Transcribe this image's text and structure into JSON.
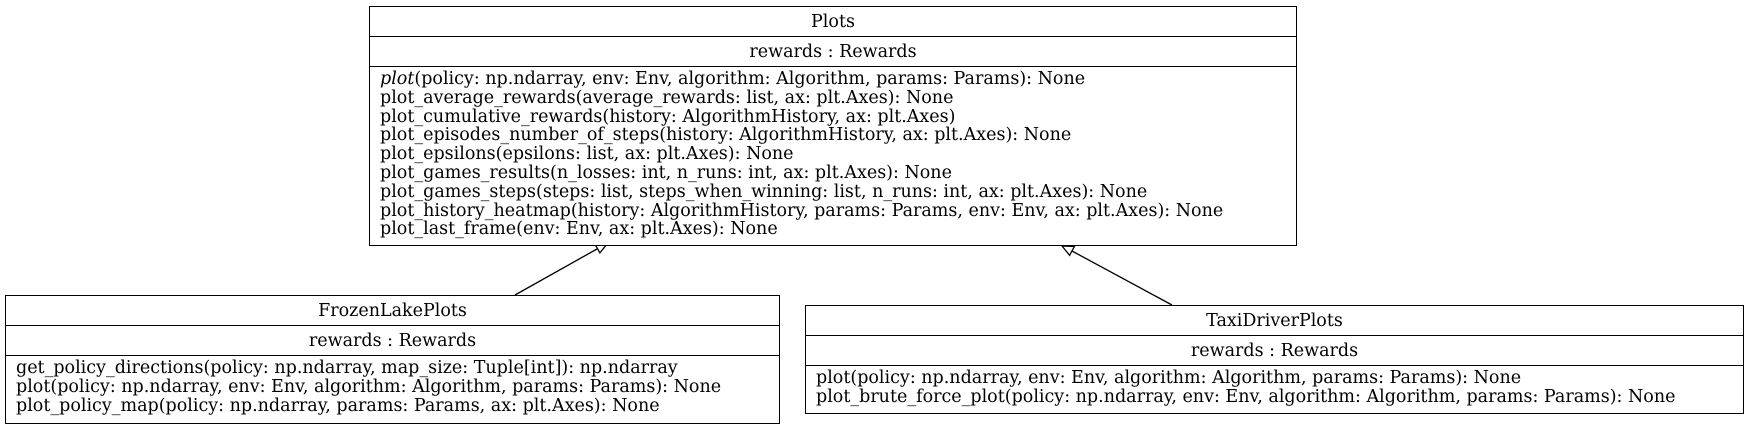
{
  "classes": {
    "plots": {
      "name": "Plots",
      "attributes": [
        "rewards : Rewards"
      ],
      "methods": [
        {
          "name": "plot",
          "signature": "(policy: np.ndarray, env: Env, algorithm: Algorithm, params: Params): None",
          "abstract": true
        },
        {
          "text": "plot_average_rewards(average_rewards: list, ax: plt.Axes): None"
        },
        {
          "text": "plot_cumulative_rewards(history: AlgorithmHistory, ax: plt.Axes)"
        },
        {
          "text": "plot_episodes_number_of_steps(history: AlgorithmHistory, ax: plt.Axes): None"
        },
        {
          "text": "plot_epsilons(epsilons: list, ax: plt.Axes): None"
        },
        {
          "text": "plot_games_results(n_losses: int, n_runs: int, ax: plt.Axes): None"
        },
        {
          "text": "plot_games_steps(steps: list, steps_when_winning: list, n_runs: int, ax: plt.Axes): None"
        },
        {
          "text": "plot_history_heatmap(history: AlgorithmHistory, params: Params, env: Env, ax: plt.Axes): None"
        },
        {
          "text": "plot_last_frame(env: Env, ax: plt.Axes): None"
        }
      ]
    },
    "frozen_lake_plots": {
      "name": "FrozenLakePlots",
      "attributes": [
        "rewards : Rewards"
      ],
      "methods": [
        {
          "text": "get_policy_directions(policy: np.ndarray, map_size: Tuple[int]): np.ndarray"
        },
        {
          "text": "plot(policy: np.ndarray, env: Env, algorithm: Algorithm, params: Params): None"
        },
        {
          "text": "plot_policy_map(policy: np.ndarray, params: Params, ax: plt.Axes): None"
        }
      ]
    },
    "taxi_driver_plots": {
      "name": "TaxiDriverPlots",
      "attributes": [
        "rewards : Rewards"
      ],
      "methods": [
        {
          "text": "plot(policy: np.ndarray, env: Env, algorithm: Algorithm, params: Params): None"
        },
        {
          "text": "plot_brute_force_plot(policy: np.ndarray, env: Env, algorithm: Algorithm, params: Params): None"
        }
      ]
    }
  },
  "relations": [
    {
      "type": "inheritance",
      "from": "FrozenLakePlots",
      "to": "Plots"
    },
    {
      "type": "inheritance",
      "from": "TaxiDriverPlots",
      "to": "Plots"
    }
  ]
}
